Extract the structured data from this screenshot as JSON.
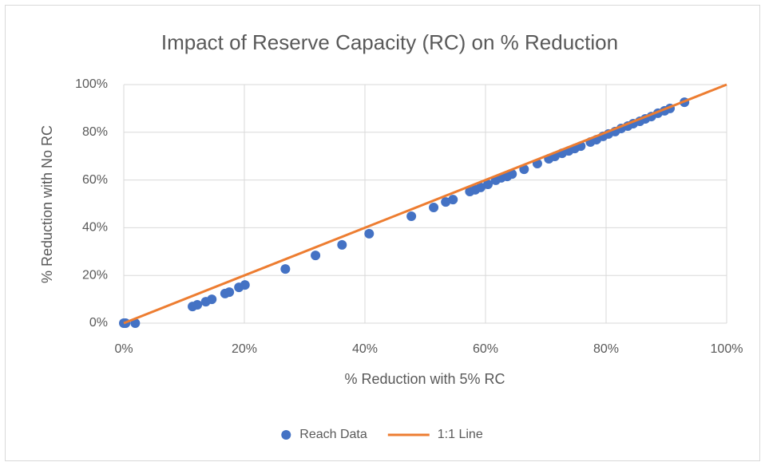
{
  "chart_data": {
    "type": "scatter",
    "title": "Impact of Reserve Capacity (RC) on % Reduction",
    "x_label": "% Reduction with 5% RC",
    "y_label": "% Reduction with No RC",
    "xlim": [
      0,
      100
    ],
    "ylim": [
      0,
      100
    ],
    "xticks": [
      {
        "value": 0,
        "label": "0%"
      },
      {
        "value": 20,
        "label": "20%"
      },
      {
        "value": 40,
        "label": "40%"
      },
      {
        "value": 60,
        "label": "60%"
      },
      {
        "value": 80,
        "label": "80%"
      },
      {
        "value": 100,
        "label": "100%"
      }
    ],
    "yticks": [
      {
        "value": 0,
        "label": "0%"
      },
      {
        "value": 20,
        "label": "20%"
      },
      {
        "value": 40,
        "label": "40%"
      },
      {
        "value": 60,
        "label": "60%"
      },
      {
        "value": 80,
        "label": "80%"
      },
      {
        "value": 100,
        "label": "100%"
      }
    ],
    "grid": true,
    "legend": "bottom",
    "series": [
      {
        "name": "Reach Data",
        "type": "scatter",
        "color": "#4472c4",
        "x": [
          0,
          0.3,
          1.9,
          11.4,
          12.2,
          13.6,
          14.6,
          16.8,
          17.5,
          19.1,
          20.1,
          26.8,
          31.8,
          36.2,
          40.7,
          47.7,
          51.4,
          53.4,
          54.6,
          57.4,
          58.3,
          59.2,
          60.4,
          61.7,
          62.6,
          63.6,
          64.4,
          66.4,
          68.6,
          70.5,
          71.5,
          72.7,
          73.8,
          74.8,
          75.8,
          77.4,
          78.4,
          79.5,
          80.4,
          81.5,
          82.5,
          83.6,
          84.5,
          85.6,
          86.5,
          87.5,
          88.6,
          89.7,
          90.6,
          93
        ],
        "values": [
          0,
          0,
          0,
          7,
          7.7,
          9,
          10,
          12.4,
          13,
          15,
          16,
          22.7,
          28.4,
          32.8,
          37.5,
          44.8,
          48.5,
          50.8,
          51.8,
          55.2,
          55.9,
          56.9,
          58.2,
          59.9,
          60.9,
          61.5,
          62.5,
          64.5,
          66.9,
          68.9,
          69.9,
          71.2,
          72.2,
          73.2,
          74.2,
          75.9,
          76.9,
          78.3,
          79.3,
          80.3,
          81.6,
          82.6,
          83.6,
          84.6,
          85.6,
          86.6,
          88,
          89,
          90,
          92.6
        ]
      },
      {
        "name": "1:1 Line",
        "type": "line",
        "color": "#ed7d31",
        "x": [
          0,
          100
        ],
        "values": [
          0,
          100
        ]
      }
    ]
  }
}
